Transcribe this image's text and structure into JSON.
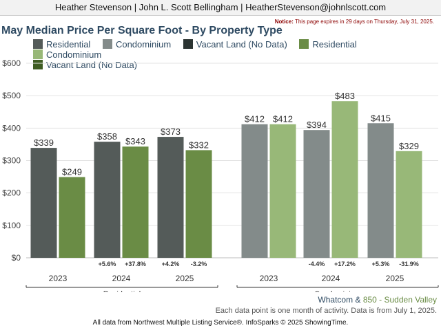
{
  "header": {
    "contact": "Heather Stevenson | John L. Scott Bellingham | HeatherStevenson@johnlscott.com"
  },
  "notice": {
    "label": "Notice:",
    "text": "This page expires in 29 days on Thursday, July 31, 2025."
  },
  "title": "May Median Price Per Square Foot - By Property Type",
  "legend": [
    {
      "label": "Residential",
      "color": "#545b59"
    },
    {
      "label": "Condominium",
      "color": "#838b8a"
    },
    {
      "label": "Vacant Land (No Data)",
      "color": "#2b3432"
    },
    {
      "label": "Residential",
      "color": "#6a8c45"
    },
    {
      "label": "Condominium",
      "color": "#98b878"
    },
    {
      "label": "Vacant Land (No Data)",
      "color": "#3e5c22"
    }
  ],
  "region": {
    "area": "Whatcom",
    "sep": "&",
    "sub": "850 - Sudden Valley",
    "area_color": "#2e4a62",
    "sub_color": "#6a8c45"
  },
  "bottom_note": "Each data point is one month of activity. Data is from July 1, 2025.",
  "footer": "All data from Northwest Multiple Listing Service®. InfoSparks © 2025 ShowingTime.",
  "chart_data": {
    "type": "bar",
    "ylim": [
      0,
      600
    ],
    "yticks": [
      "$0",
      "$100",
      "$200",
      "$300",
      "$400",
      "$500",
      "$600"
    ],
    "grid": true,
    "groups": [
      {
        "name": "Residential",
        "years": [
          {
            "year": "2023",
            "area": {
              "value": 339,
              "label": "$339",
              "change": ""
            },
            "sub": {
              "value": 249,
              "label": "$249",
              "change": ""
            }
          },
          {
            "year": "2024",
            "area": {
              "value": 358,
              "label": "$358",
              "change": "+5.6%"
            },
            "sub": {
              "value": 343,
              "label": "$343",
              "change": "+37.8%"
            }
          },
          {
            "year": "2025",
            "area": {
              "value": 373,
              "label": "$373",
              "change": "+4.2%"
            },
            "sub": {
              "value": 332,
              "label": "$332",
              "change": "-3.2%"
            }
          }
        ],
        "area_color": "#545b59",
        "sub_color": "#6a8c45"
      },
      {
        "name": "Condominium",
        "years": [
          {
            "year": "2023",
            "area": {
              "value": 412,
              "label": "$412",
              "change": ""
            },
            "sub": {
              "value": 412,
              "label": "$412",
              "change": ""
            }
          },
          {
            "year": "2024",
            "area": {
              "value": 394,
              "label": "$394",
              "change": "-4.4%"
            },
            "sub": {
              "value": 483,
              "label": "$483",
              "change": "+17.2%"
            }
          },
          {
            "year": "2025",
            "area": {
              "value": 415,
              "label": "$415",
              "change": "+5.3%"
            },
            "sub": {
              "value": 329,
              "label": "$329",
              "change": "-31.9%"
            }
          }
        ],
        "area_color": "#838b8a",
        "sub_color": "#98b878"
      }
    ]
  }
}
